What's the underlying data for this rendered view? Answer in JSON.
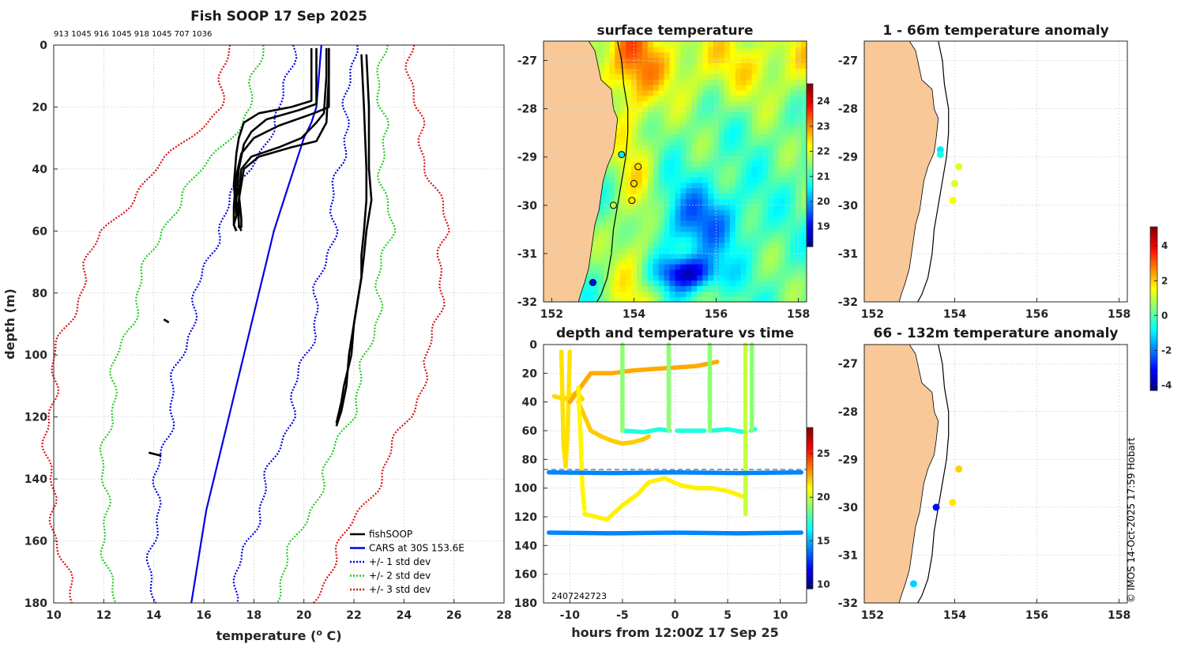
{
  "figure": {
    "footer": "© IMOS 14-Oct-2025 17:59 Hobart",
    "colors": {
      "fishsoop": "#000000",
      "cars": "#0000e6",
      "std1": "#0000e6",
      "std2": "#22cc22",
      "std3": "#dd1111",
      "land": "#f8c898"
    }
  },
  "chart_data": [
    {
      "id": "profile",
      "type": "line",
      "title": "Fish SOOP 17 Sep 2025",
      "subtitle": "913 1045 916 1045 918 1045 707 1036",
      "xlabel": "temperature (o C)",
      "xlabel_main": "temperature (",
      "xlabel_sup": "o",
      "xlabel_tail": " C)",
      "ylabel": "depth (m)",
      "xlim": [
        10,
        28
      ],
      "ylim": [
        0,
        180
      ],
      "y_reversed": true,
      "xticks": [
        10,
        12,
        14,
        16,
        18,
        20,
        22,
        24,
        26,
        28
      ],
      "yticks": [
        0,
        20,
        40,
        60,
        80,
        100,
        120,
        140,
        160,
        180
      ],
      "legend": [
        "fishSOOP",
        "CARS at 30S 153.6E",
        "+/- 1 std dev",
        "+/- 2 std dev",
        "+/- 3 std dev"
      ],
      "cars_mean": {
        "depth": [
          0,
          5,
          10,
          15,
          20,
          25,
          30,
          40,
          50,
          60,
          70,
          80,
          90,
          100,
          110,
          120,
          130,
          140,
          150,
          160,
          170,
          180
        ],
        "temp": [
          20.7,
          20.65,
          20.6,
          20.55,
          20.5,
          20.3,
          20.0,
          19.6,
          19.2,
          18.8,
          18.5,
          18.2,
          17.9,
          17.6,
          17.3,
          17.0,
          16.7,
          16.4,
          16.1,
          15.9,
          15.7,
          15.5
        ]
      },
      "std_offsets": {
        "depth": [
          0,
          20,
          40,
          60,
          80,
          100,
          120,
          140,
          160,
          180
        ],
        "sd": [
          1.2,
          1.3,
          1.8,
          2.3,
          2.4,
          2.5,
          2.4,
          2.2,
          1.9,
          1.6
        ]
      },
      "fishsoop_profiles": [
        {
          "depth": [
            1,
            10,
            18,
            20,
            22,
            25,
            30,
            35,
            45,
            55,
            58,
            60
          ],
          "temp": [
            20.3,
            20.3,
            20.3,
            19.5,
            18.2,
            17.6,
            17.4,
            17.3,
            17.2,
            17.3,
            17.2,
            17.3
          ]
        },
        {
          "depth": [
            1,
            10,
            19,
            21,
            24,
            28,
            32,
            40,
            50,
            57,
            59
          ],
          "temp": [
            20.5,
            20.5,
            20.5,
            19.8,
            18.5,
            17.9,
            17.6,
            17.4,
            17.3,
            17.4,
            17.4
          ]
        },
        {
          "depth": [
            1,
            10,
            20,
            22,
            26,
            30,
            35,
            42,
            52,
            58,
            60
          ],
          "temp": [
            21.0,
            21.0,
            21.0,
            20.4,
            19.0,
            18.0,
            17.5,
            17.3,
            17.2,
            17.2,
            17.3
          ]
        },
        {
          "depth": [
            1,
            10,
            22,
            25,
            30,
            33,
            36,
            40,
            48,
            56,
            59
          ],
          "temp": [
            20.9,
            20.9,
            20.8,
            20.5,
            19.9,
            19.0,
            17.9,
            17.5,
            17.4,
            17.5,
            17.5
          ]
        },
        {
          "depth": [
            1,
            10,
            25,
            31,
            33,
            36,
            40,
            50,
            58,
            60
          ],
          "temp": [
            21.0,
            21.0,
            20.9,
            20.5,
            19.5,
            18.2,
            17.6,
            17.4,
            17.4,
            17.5
          ]
        },
        {
          "depth": [
            3,
            20,
            40,
            50,
            60,
            68,
            75,
            80,
            90,
            100,
            110,
            115,
            122
          ],
          "temp": [
            22.3,
            22.4,
            22.5,
            22.5,
            22.4,
            22.3,
            22.3,
            22.2,
            22.0,
            21.9,
            21.6,
            21.5,
            21.3
          ]
        },
        {
          "depth": [
            3,
            20,
            40,
            50,
            60,
            68,
            75,
            80,
            90,
            100,
            110,
            118,
            123
          ],
          "temp": [
            22.5,
            22.6,
            22.6,
            22.7,
            22.5,
            22.4,
            22.3,
            22.2,
            22.0,
            21.8,
            21.7,
            21.5,
            21.3
          ]
        },
        {
          "depth": [
            88.5,
            89.5
          ],
          "temp": [
            14.4,
            14.6
          ]
        },
        {
          "depth": [
            131.5,
            132.5
          ],
          "temp": [
            13.8,
            14.3
          ]
        }
      ]
    },
    {
      "id": "sst",
      "type": "heatmap",
      "title": "surface temperature",
      "xlim": [
        151.8,
        158.2
      ],
      "ylim": [
        -32,
        -26.6
      ],
      "xticks": [
        152,
        154,
        156,
        158
      ],
      "yticks": [
        -27,
        -28,
        -29,
        -30,
        -31,
        -32
      ],
      "colorbar": {
        "min": 18.2,
        "max": 24.7,
        "ticks": [
          19,
          20,
          21,
          22,
          23,
          24
        ]
      },
      "stations": [
        {
          "lon": 153.7,
          "lat": -28.95,
          "c": 20.5
        },
        {
          "lon": 154.1,
          "lat": -29.2,
          "c": 22.5
        },
        {
          "lon": 154.0,
          "lat": -29.55,
          "c": 22.5
        },
        {
          "lon": 153.95,
          "lat": -29.9,
          "c": 22.4
        },
        {
          "lon": 153.5,
          "lat": -30.0,
          "c": 21.8
        },
        {
          "lon": 153.0,
          "lat": -31.6,
          "c": 19.0
        }
      ]
    },
    {
      "id": "depth_time",
      "type": "scatter",
      "title": "depth and temperature vs time",
      "xlabel": "hours from 12:00Z 17 Sep 25",
      "xlim": [
        -12.5,
        12.5
      ],
      "ylim": [
        0,
        180
      ],
      "y_reversed": true,
      "xticks": [
        -10,
        -5,
        0,
        5,
        10
      ],
      "yticks": [
        0,
        20,
        40,
        60,
        80,
        100,
        120,
        140,
        160,
        180
      ],
      "colorbar": {
        "min": 9.5,
        "max": 28,
        "ticks": [
          10,
          15,
          20,
          25
        ]
      },
      "footnote": "2407242723",
      "dashed_line_depth": 87,
      "tracks": [
        {
          "c": 21.8,
          "t": [
            -11.5,
            -10.5,
            -9.5,
            -9.0,
            -8.8
          ],
          "d": [
            36,
            38,
            34,
            36,
            38
          ]
        },
        {
          "c": 21.6,
          "t": [
            -10.8,
            -10.6,
            -10.4,
            -10.2,
            -10.0
          ],
          "d": [
            5,
            70,
            85,
            60,
            5
          ]
        },
        {
          "c": 22.6,
          "t": [
            -10,
            -8,
            -6,
            -4,
            -2,
            0,
            2,
            4
          ],
          "d": [
            40,
            20,
            20,
            18,
            17,
            16,
            15,
            12
          ]
        },
        {
          "c": 22.0,
          "t": [
            -9.2,
            -8.0,
            -7.0,
            -6.0,
            -5.0,
            -4.0,
            -3.0,
            -2.5
          ],
          "d": [
            40,
            60,
            64,
            67,
            69,
            68,
            66,
            64
          ]
        },
        {
          "c": 21.2,
          "t": [
            -9.2,
            -9.0,
            -8.8,
            -8.6
          ],
          "d": [
            30,
            60,
            100,
            115
          ]
        },
        {
          "c": 21.3,
          "t": [
            -8.6,
            -7.5,
            -6.5,
            -5,
            -3.5,
            -2.5,
            -1,
            0.5,
            2,
            3.5,
            5,
            6.5
          ],
          "d": [
            118,
            120,
            122,
            112,
            104,
            96,
            93,
            98,
            100,
            100,
            102,
            106
          ]
        },
        {
          "c": 17.0,
          "t": [
            -4.8,
            -3,
            -1.5,
            -0.5
          ],
          "d": [
            60,
            61,
            59,
            60
          ]
        },
        {
          "c": 17.0,
          "t": [
            0.2,
            1.5,
            2.8
          ],
          "d": [
            60,
            60,
            60
          ]
        },
        {
          "c": 17.0,
          "t": [
            3.4,
            5,
            6.6
          ],
          "d": [
            60,
            59,
            61
          ]
        },
        {
          "c": 17.0,
          "t": [
            7.2,
            7.6
          ],
          "d": [
            60,
            59
          ]
        },
        {
          "c": 19.0,
          "t": [
            -5,
            -5,
            -5
          ],
          "d": [
            0,
            30,
            60
          ]
        },
        {
          "c": 19.0,
          "t": [
            -0.6,
            -0.6
          ],
          "d": [
            0,
            60
          ]
        },
        {
          "c": 19.0,
          "t": [
            3.3,
            3.3
          ],
          "d": [
            0,
            60
          ]
        },
        {
          "c": 20.0,
          "t": [
            6.7,
            6.7
          ],
          "d": [
            0,
            118
          ]
        },
        {
          "c": 19.0,
          "t": [
            7.3,
            7.3
          ],
          "d": [
            0,
            60
          ]
        },
        {
          "c": 14.2,
          "t": [
            -12,
            -6,
            0,
            6,
            12
          ],
          "d": [
            89,
            89.5,
            89,
            89.5,
            89
          ]
        },
        {
          "c": 14.2,
          "t": [
            -12,
            -6,
            0,
            6,
            12
          ],
          "d": [
            131,
            131.5,
            131,
            131.5,
            131
          ]
        }
      ]
    },
    {
      "id": "anom_shallow",
      "type": "scatter",
      "title": "1 - 66m temperature anomaly",
      "xlim": [
        151.8,
        158.2
      ],
      "ylim": [
        -32,
        -26.6
      ],
      "xticks": [
        152,
        154,
        156,
        158
      ],
      "yticks": [
        -27,
        -28,
        -29,
        -30,
        -31,
        -32
      ],
      "points": [
        {
          "lon": 153.65,
          "lat": -28.85,
          "v": -1.0
        },
        {
          "lon": 153.65,
          "lat": -28.95,
          "v": -0.5
        },
        {
          "lon": 154.1,
          "lat": -29.2,
          "v": 1.3
        },
        {
          "lon": 154.0,
          "lat": -29.55,
          "v": 1.3
        },
        {
          "lon": 153.95,
          "lat": -29.9,
          "v": 1.5
        }
      ]
    },
    {
      "id": "anom_deep",
      "type": "scatter",
      "title": "66 - 132m temperature anomaly",
      "xlim": [
        151.8,
        158.2
      ],
      "ylim": [
        -32,
        -26.6
      ],
      "xticks": [
        152,
        154,
        156,
        158
      ],
      "yticks": [
        -27,
        -28,
        -29,
        -30,
        -31,
        -32
      ],
      "colorbar": {
        "min": -4.3,
        "max": 5.1,
        "ticks": [
          -4,
          -2,
          0,
          2,
          4
        ]
      },
      "points": [
        {
          "lon": 154.1,
          "lat": -29.2,
          "v": 2.0
        },
        {
          "lon": 153.95,
          "lat": -29.9,
          "v": 1.8
        },
        {
          "lon": 153.55,
          "lat": -30.0,
          "v": -3.0
        },
        {
          "lon": 153.0,
          "lat": -31.6,
          "v": -1.2
        }
      ]
    }
  ]
}
